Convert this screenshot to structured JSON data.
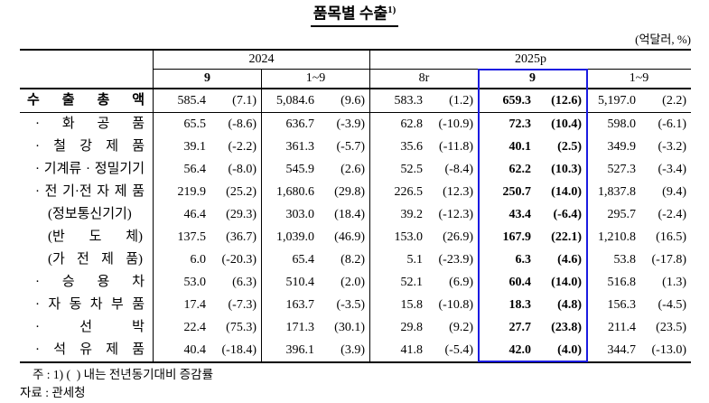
{
  "title": {
    "text": "품목별 수출",
    "superscript": "1)"
  },
  "unit_note": "(억달러, %)",
  "colors": {
    "highlight": "#1b1be0",
    "text": "#000000",
    "background": "#ffffff"
  },
  "table": {
    "groups": [
      {
        "label": "2024",
        "subcols": [
          "9",
          "1~9"
        ]
      },
      {
        "label": "2025p",
        "subcols": [
          "8r",
          "9",
          "1~9"
        ]
      }
    ],
    "highlighted_column": "2025p 9",
    "rows": [
      {
        "label": "수 출 총 액",
        "style": "total",
        "cells": [
          {
            "v": "585.4",
            "p": "(7.1)"
          },
          {
            "v": "5,084.6",
            "p": "(9.6)"
          },
          {
            "v": "583.3",
            "p": "(1.2)"
          },
          {
            "v": "659.3",
            "p": "(12.6)"
          },
          {
            "v": "5,197.0",
            "p": "(2.2)"
          }
        ]
      },
      {
        "label": "· 화 공 품",
        "style": "item",
        "cells": [
          {
            "v": "65.5",
            "p": "(-8.6)"
          },
          {
            "v": "636.7",
            "p": "(-3.9)"
          },
          {
            "v": "62.8",
            "p": "(-10.9)"
          },
          {
            "v": "72.3",
            "p": "(10.4)"
          },
          {
            "v": "598.0",
            "p": "(-6.1)"
          }
        ]
      },
      {
        "label": "· 철 강 제 품",
        "style": "item",
        "cells": [
          {
            "v": "39.1",
            "p": "(-2.2)"
          },
          {
            "v": "361.3",
            "p": "(-5.7)"
          },
          {
            "v": "35.6",
            "p": "(-11.8)"
          },
          {
            "v": "40.1",
            "p": "(2.5)"
          },
          {
            "v": "349.9",
            "p": "(-3.2)"
          }
        ]
      },
      {
        "label": "· 기계류 · 정밀기기",
        "style": "item",
        "cells": [
          {
            "v": "56.4",
            "p": "(-8.0)"
          },
          {
            "v": "545.9",
            "p": "(2.6)"
          },
          {
            "v": "52.5",
            "p": "(-8.4)"
          },
          {
            "v": "62.2",
            "p": "(10.3)"
          },
          {
            "v": "527.3",
            "p": "(-3.4)"
          }
        ]
      },
      {
        "label": "· 전 기·전 자 제 품",
        "style": "item",
        "cells": [
          {
            "v": "219.9",
            "p": "(25.2)"
          },
          {
            "v": "1,680.6",
            "p": "(29.8)"
          },
          {
            "v": "226.5",
            "p": "(12.3)"
          },
          {
            "v": "250.7",
            "p": "(14.0)"
          },
          {
            "v": "1,837.8",
            "p": "(9.4)"
          }
        ]
      },
      {
        "label": "(정보통신기기)",
        "style": "sub",
        "cells": [
          {
            "v": "46.4",
            "p": "(29.3)"
          },
          {
            "v": "303.0",
            "p": "(18.4)"
          },
          {
            "v": "39.2",
            "p": "(-12.3)"
          },
          {
            "v": "43.4",
            "p": "(-6.4)"
          },
          {
            "v": "295.7",
            "p": "(-2.4)"
          }
        ]
      },
      {
        "label": "(반 도 체)",
        "style": "sub",
        "cells": [
          {
            "v": "137.5",
            "p": "(36.7)"
          },
          {
            "v": "1,039.0",
            "p": "(46.9)"
          },
          {
            "v": "153.0",
            "p": "(26.9)"
          },
          {
            "v": "167.9",
            "p": "(22.1)"
          },
          {
            "v": "1,210.8",
            "p": "(16.5)"
          }
        ]
      },
      {
        "label": "(가 전 제 품)",
        "style": "sub",
        "cells": [
          {
            "v": "6.0",
            "p": "(-20.3)"
          },
          {
            "v": "65.4",
            "p": "(8.2)"
          },
          {
            "v": "5.1",
            "p": "(-23.9)"
          },
          {
            "v": "6.3",
            "p": "(4.6)"
          },
          {
            "v": "53.8",
            "p": "(-17.8)"
          }
        ]
      },
      {
        "label": "· 승 용 차",
        "style": "item",
        "cells": [
          {
            "v": "53.0",
            "p": "(6.3)"
          },
          {
            "v": "510.4",
            "p": "(2.0)"
          },
          {
            "v": "52.1",
            "p": "(6.9)"
          },
          {
            "v": "60.4",
            "p": "(14.0)"
          },
          {
            "v": "516.8",
            "p": "(1.3)"
          }
        ]
      },
      {
        "label": "· 자 동 차 부 품",
        "style": "item",
        "cells": [
          {
            "v": "17.4",
            "p": "(-7.3)"
          },
          {
            "v": "163.7",
            "p": "(-3.5)"
          },
          {
            "v": "15.8",
            "p": "(-10.8)"
          },
          {
            "v": "18.3",
            "p": "(4.8)"
          },
          {
            "v": "156.3",
            "p": "(-4.5)"
          }
        ]
      },
      {
        "label": "· 선 박",
        "style": "item",
        "cells": [
          {
            "v": "22.4",
            "p": "(75.3)"
          },
          {
            "v": "171.3",
            "p": "(30.1)"
          },
          {
            "v": "29.8",
            "p": "(9.2)"
          },
          {
            "v": "27.7",
            "p": "(23.8)"
          },
          {
            "v": "211.4",
            "p": "(23.5)"
          }
        ]
      },
      {
        "label": "· 석 유 제 품",
        "style": "item",
        "cells": [
          {
            "v": "40.4",
            "p": "(-18.4)"
          },
          {
            "v": "396.1",
            "p": "(3.9)"
          },
          {
            "v": "41.8",
            "p": "(-5.4)"
          },
          {
            "v": "42.0",
            "p": "(4.0)"
          },
          {
            "v": "344.7",
            "p": "(-13.0)"
          }
        ]
      }
    ]
  },
  "notes": {
    "footnote": "주 : 1) (  ) 내는 전년동기대비 증감률",
    "source": "자료 : 관세청"
  }
}
